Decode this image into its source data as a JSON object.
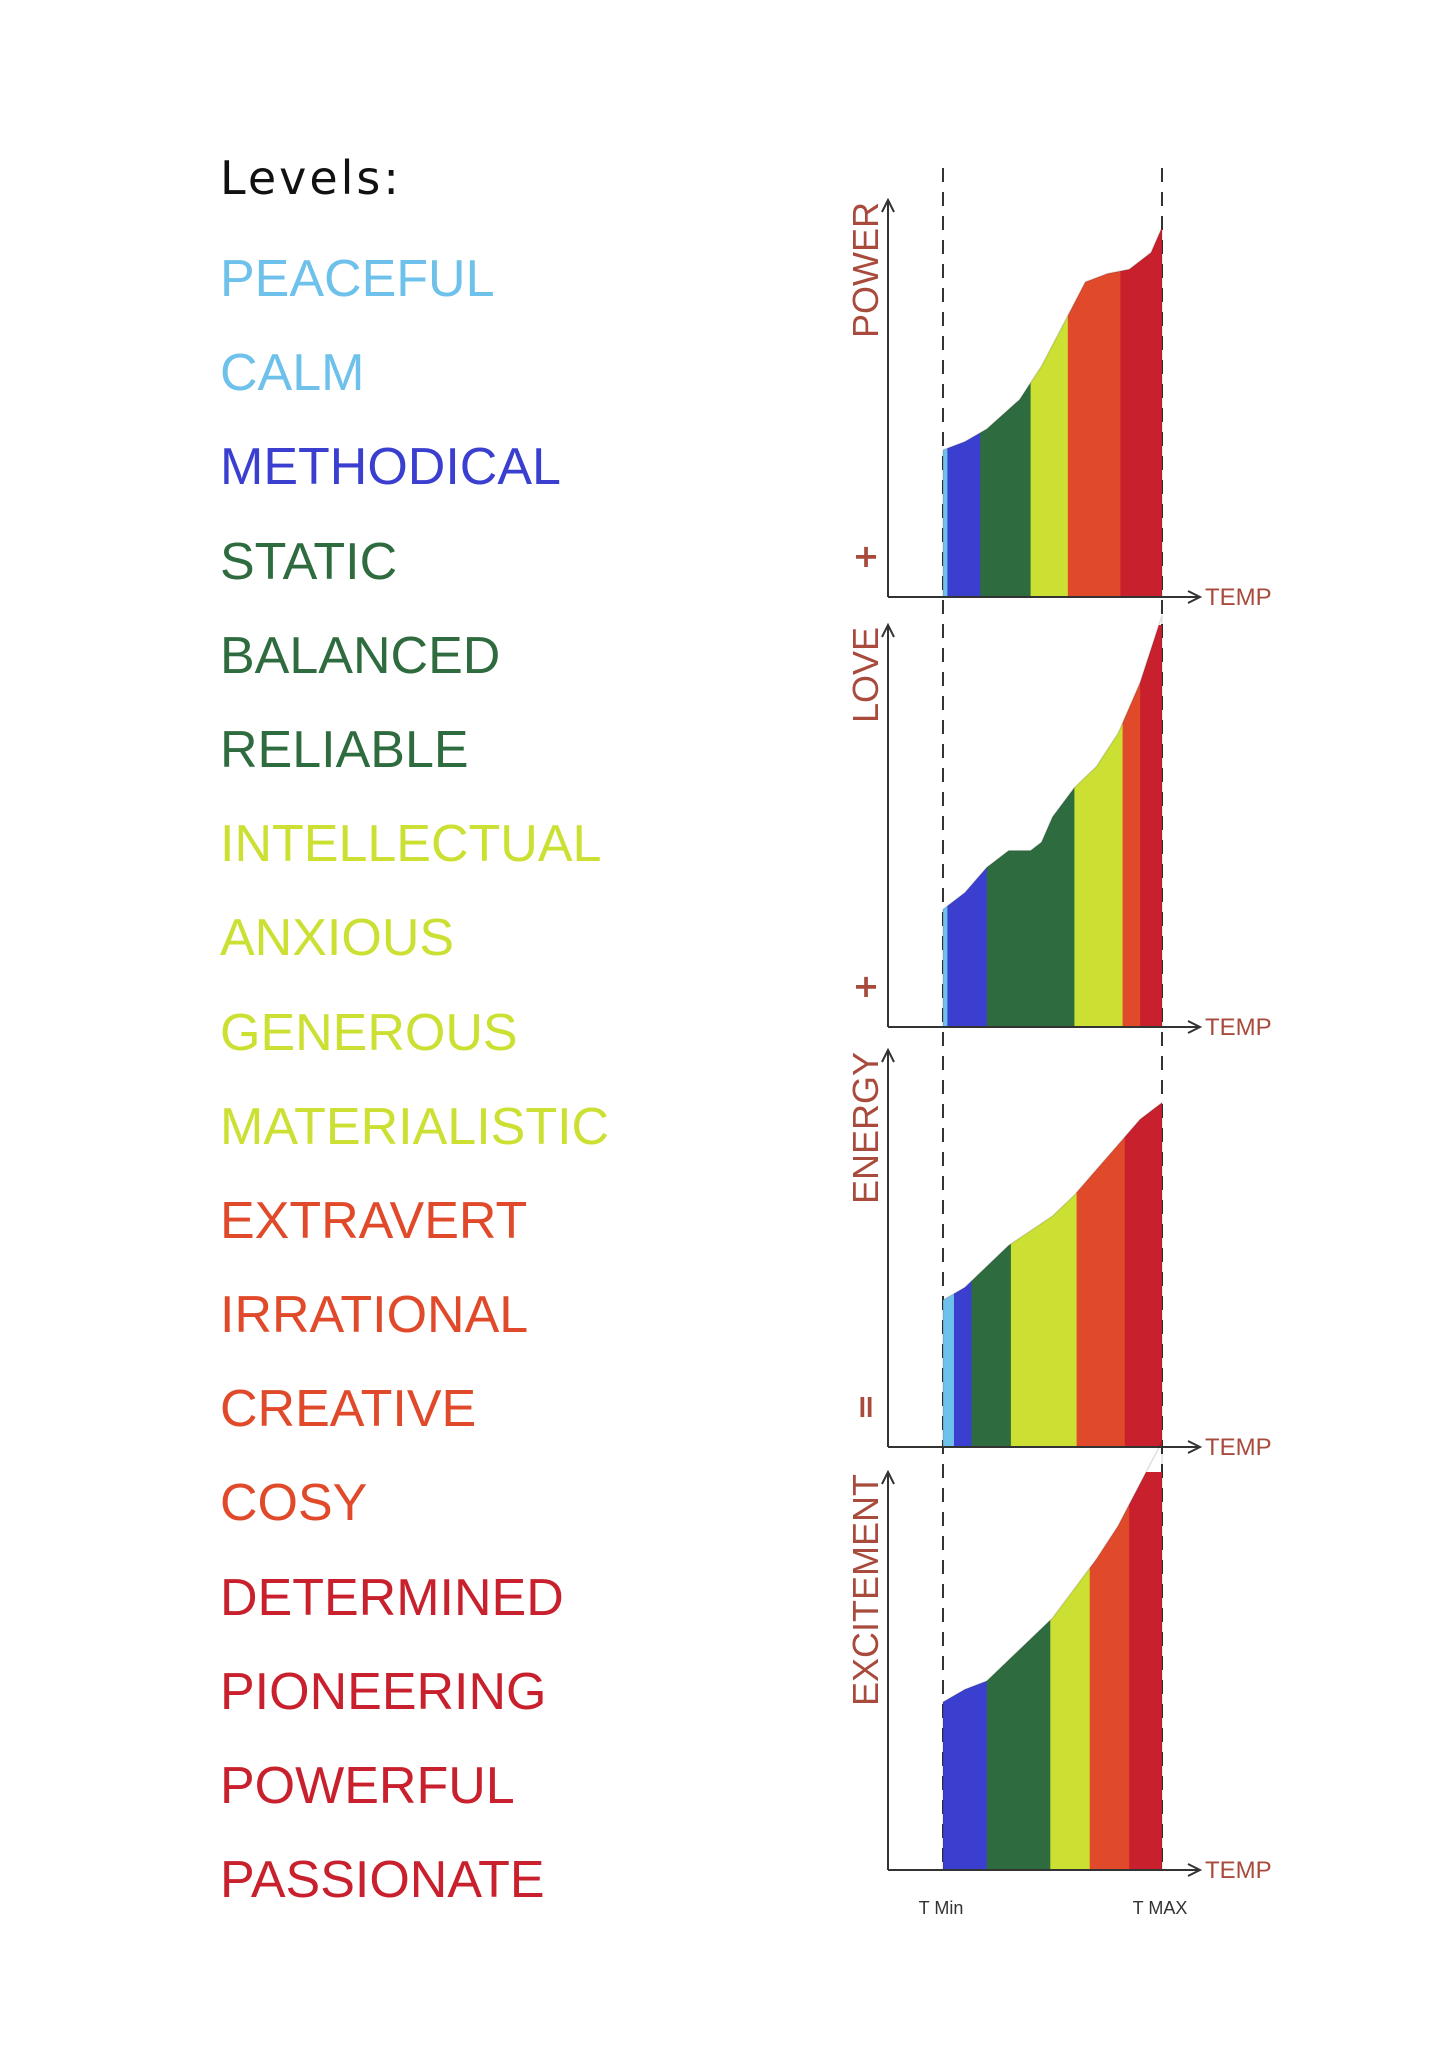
{
  "levels": {
    "heading": "Levels:",
    "items": [
      {
        "label": "PEACEFUL",
        "color": "#6ec1ea"
      },
      {
        "label": "CALM",
        "color": "#6ec1ea"
      },
      {
        "label": "METHODICAL",
        "color": "#3b3fd0"
      },
      {
        "label": "STATIC",
        "color": "#2e6b3e"
      },
      {
        "label": "BALANCED",
        "color": "#2e6b3e"
      },
      {
        "label": "RELIABLE",
        "color": "#2e6b3e"
      },
      {
        "label": "INTELLECTUAL",
        "color": "#cbe032"
      },
      {
        "label": "ANXIOUS",
        "color": "#cbe032"
      },
      {
        "label": "GENEROUS",
        "color": "#cbe032"
      },
      {
        "label": "MATERIALISTIC",
        "color": "#cbe032"
      },
      {
        "label": "EXTRAVERT",
        "color": "#e04a2a"
      },
      {
        "label": "IRRATIONAL",
        "color": "#e04a2a"
      },
      {
        "label": "CREATIVE",
        "color": "#e04a2a"
      },
      {
        "label": "COSY",
        "color": "#e04a2a"
      },
      {
        "label": "DETERMINED",
        "color": "#c8202c"
      },
      {
        "label": "PIONEERING",
        "color": "#c8202c"
      },
      {
        "label": "POWERFUL",
        "color": "#c8202c"
      },
      {
        "label": "PASSIONATE",
        "color": "#c8202c"
      }
    ]
  },
  "chart_data": [
    {
      "type": "area",
      "ylabel": "POWER",
      "xlabel": "TEMP",
      "marker": "+",
      "x": [
        0,
        0.1,
        0.2,
        0.35,
        0.45,
        0.55,
        0.65,
        0.75,
        0.85,
        0.95,
        1.0
      ],
      "y": [
        0.35,
        0.37,
        0.4,
        0.47,
        0.55,
        0.65,
        0.75,
        0.77,
        0.78,
        0.82,
        0.88
      ],
      "bands": [
        {
          "color": "#6ec1ea",
          "x_end": 0.02
        },
        {
          "color": "#3b3fd0",
          "x_end": 0.17
        },
        {
          "color": "#2e6b3e",
          "x_end": 0.4
        },
        {
          "color": "#cbe032",
          "x_end": 0.57
        },
        {
          "color": "#e04a2a",
          "x_end": 0.81
        },
        {
          "color": "#c8202c",
          "x_end": 1.0
        }
      ]
    },
    {
      "type": "area",
      "ylabel": "LOVE",
      "xlabel": "TEMP",
      "marker": "+",
      "x": [
        0,
        0.1,
        0.2,
        0.3,
        0.4,
        0.45,
        0.5,
        0.6,
        0.7,
        0.8,
        0.9,
        1.0
      ],
      "y": [
        0.28,
        0.32,
        0.38,
        0.42,
        0.42,
        0.44,
        0.5,
        0.57,
        0.62,
        0.7,
        0.82,
        0.98
      ],
      "bands": [
        {
          "color": "#6ec1ea",
          "x_end": 0.02
        },
        {
          "color": "#3b3fd0",
          "x_end": 0.2
        },
        {
          "color": "#2e6b3e",
          "x_end": 0.6
        },
        {
          "color": "#cbe032",
          "x_end": 0.82
        },
        {
          "color": "#e04a2a",
          "x_end": 0.9
        },
        {
          "color": "#c8202c",
          "x_end": 1.0
        }
      ]
    },
    {
      "type": "area",
      "ylabel": "ENERGY",
      "xlabel": "TEMP",
      "marker": "=",
      "x": [
        0,
        0.1,
        0.2,
        0.3,
        0.5,
        0.6,
        0.7,
        0.8,
        0.9,
        1.0
      ],
      "y": [
        0.35,
        0.38,
        0.43,
        0.48,
        0.55,
        0.6,
        0.66,
        0.72,
        0.78,
        0.82
      ],
      "bands": [
        {
          "color": "#6ec1ea",
          "x_end": 0.05
        },
        {
          "color": "#3b3fd0",
          "x_end": 0.13
        },
        {
          "color": "#2e6b3e",
          "x_end": 0.31
        },
        {
          "color": "#cbe032",
          "x_end": 0.61
        },
        {
          "color": "#e04a2a",
          "x_end": 0.83
        },
        {
          "color": "#c8202c",
          "x_end": 1.0
        }
      ]
    },
    {
      "type": "area",
      "ylabel": "EXCITEMENT",
      "xlabel": "TEMP",
      "marker": "",
      "x_ticks": [
        "T Min",
        "T MAX"
      ],
      "x": [
        0,
        0.1,
        0.2,
        0.3,
        0.4,
        0.5,
        0.6,
        0.7,
        0.8,
        0.9,
        1.0
      ],
      "y": [
        0.4,
        0.43,
        0.45,
        0.5,
        0.55,
        0.6,
        0.67,
        0.74,
        0.82,
        0.92,
        1.02
      ],
      "bands": [
        {
          "color": "#3b3fd0",
          "x_end": 0.2
        },
        {
          "color": "#2e6b3e",
          "x_end": 0.49
        },
        {
          "color": "#cbe032",
          "x_end": 0.67
        },
        {
          "color": "#e04a2a",
          "x_end": 0.85
        },
        {
          "color": "#c8202c",
          "x_end": 1.0
        }
      ]
    }
  ]
}
